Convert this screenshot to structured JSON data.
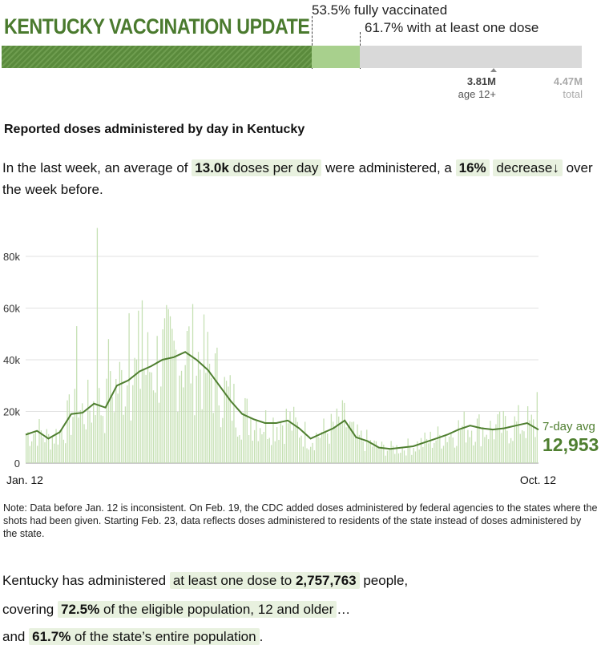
{
  "header": {
    "title": "KENTUCKY VACCINATION UPDATE",
    "fully_vaccinated_label": "53.5% fully vaccinated",
    "one_dose_label": "61.7% with at least one dose",
    "fully_vaccinated_pct": 53.5,
    "one_dose_pct": 61.7,
    "eligible_pop": "3.81M",
    "eligible_label": "age 12+",
    "total_pop": "4.47M",
    "total_label": "total",
    "colors": {
      "dark_green": "#5a8a3c",
      "light_green": "#a8d08d",
      "gray": "#d9d9d9",
      "title_green": "#4a7a2e"
    }
  },
  "chart_subhead": "Reported doses administered by day in Kentucky",
  "summary": {
    "part1": "In the last week, an average of",
    "avg_value": "13.0k",
    "avg_unit": "doses per day",
    "part2": "were administered, a",
    "change_pct": "16%",
    "change_word": "decrease",
    "arrow": "↓",
    "part3": "over the week before."
  },
  "chart_data": {
    "type": "bar",
    "title": "Reported doses administered by day in Kentucky",
    "x_start_label": "Jan. 12",
    "x_end_label": "Oct. 12",
    "ylim": [
      0,
      90000
    ],
    "yticks": [
      0,
      20000,
      40000,
      60000,
      80000
    ],
    "ytick_labels": [
      "0",
      "20k",
      "40k",
      "60k",
      "80k"
    ],
    "series": [
      {
        "name": "Daily doses",
        "kind": "bar",
        "color": "#c5e0b3"
      },
      {
        "name": "7-day avg",
        "kind": "line",
        "color": "#4f7f30"
      }
    ],
    "weekly_avg_points": [
      [
        0,
        11000
      ],
      [
        7,
        12500
      ],
      [
        14,
        9500
      ],
      [
        21,
        12000
      ],
      [
        28,
        19000
      ],
      [
        35,
        19500
      ],
      [
        42,
        23000
      ],
      [
        49,
        21500
      ],
      [
        56,
        30000
      ],
      [
        63,
        32000
      ],
      [
        70,
        35500
      ],
      [
        77,
        37500
      ],
      [
        84,
        40000
      ],
      [
        91,
        41000
      ],
      [
        98,
        43000
      ],
      [
        105,
        40000
      ],
      [
        112,
        36000
      ],
      [
        119,
        30000
      ],
      [
        126,
        24000
      ],
      [
        133,
        19000
      ],
      [
        140,
        17000
      ],
      [
        147,
        15500
      ],
      [
        154,
        15500
      ],
      [
        161,
        16500
      ],
      [
        168,
        13500
      ],
      [
        175,
        9500
      ],
      [
        182,
        11500
      ],
      [
        189,
        13500
      ],
      [
        196,
        16500
      ],
      [
        203,
        10000
      ],
      [
        210,
        8500
      ],
      [
        217,
        6000
      ],
      [
        224,
        5500
      ],
      [
        231,
        6000
      ],
      [
        238,
        6500
      ],
      [
        245,
        8000
      ],
      [
        252,
        9500
      ],
      [
        259,
        11000
      ],
      [
        266,
        13000
      ],
      [
        273,
        14500
      ],
      [
        280,
        13500
      ],
      [
        287,
        13000
      ],
      [
        294,
        13500
      ],
      [
        301,
        14500
      ],
      [
        308,
        15500
      ],
      [
        315,
        12953
      ]
    ],
    "last_value_label": "7-day avg",
    "last_value": "12,953"
  },
  "note": "Note: Data before Jan. 12 is inconsistent. On Feb. 19, the CDC added doses administered by federal agencies to the states where the shots had been given. Starting Feb. 23, data reflects doses administered to residents of the state instead of doses administered by the state.",
  "stats": {
    "line1_pre": "Kentucky has administered",
    "line1_hl": "at least one dose to",
    "line1_num": "2,757,763",
    "line1_post": "people,",
    "line2_pre": "covering",
    "line2_pct": "72.5%",
    "line2_hl": "of the eligible population, 12 and older",
    "line2_post": "…",
    "line3_pre": "and",
    "line3_pct": "61.7%",
    "line3_hl": "of the state’s entire population",
    "line3_post": "."
  }
}
